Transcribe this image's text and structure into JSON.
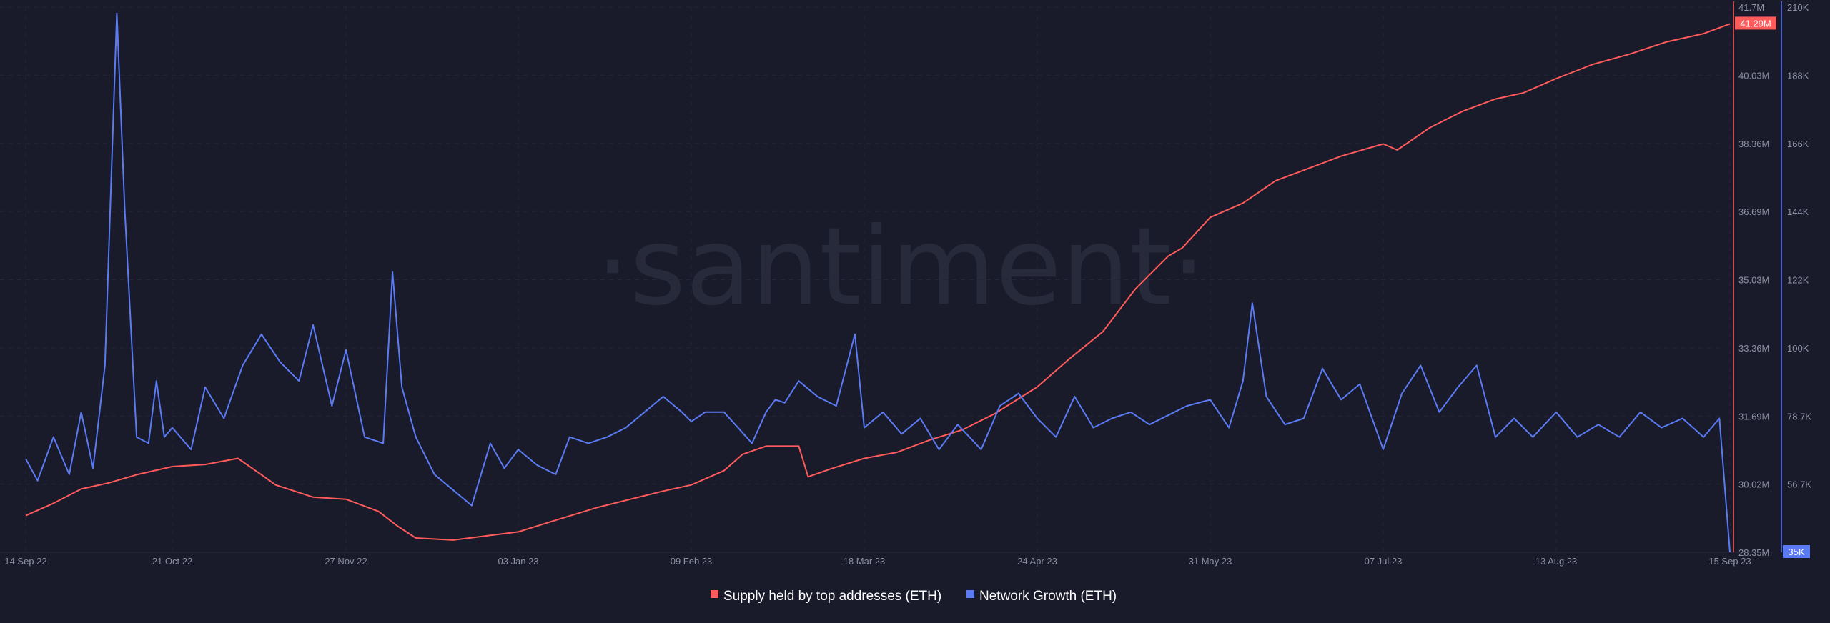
{
  "watermark": "·santiment·",
  "chart_data": {
    "type": "line",
    "x_tick_labels": [
      "14 Sep 22",
      "21 Oct 22",
      "27 Nov 22",
      "03 Jan 23",
      "09 Feb 23",
      "18 Mar 23",
      "24 Apr 23",
      "31 May 23",
      "07 Jul 23",
      "13 Aug 23",
      "15 Sep 23"
    ],
    "axes": {
      "supply": {
        "ticks": [
          "41.7M",
          "40.03M",
          "38.36M",
          "36.69M",
          "35.03M",
          "33.36M",
          "31.69M",
          "30.02M",
          "28.35M"
        ],
        "ylim": [
          28.35,
          41.7
        ],
        "unit": "M",
        "color": "#ff5b5b",
        "last_value_label": "41.29M"
      },
      "growth": {
        "ticks": [
          "210K",
          "188K",
          "166K",
          "144K",
          "122K",
          "100K",
          "78.7K",
          "56.7K",
          "35K"
        ],
        "ylim": [
          35,
          210
        ],
        "unit": "K",
        "color": "#5b7bf5",
        "last_value_label": "35K"
      }
    },
    "grid": true,
    "legend_position": "bottom-center",
    "series": [
      {
        "name": "Supply held by top addresses (ETH)",
        "axis": "supply",
        "x": [
          "14 Sep 22",
          "21 Sep 22",
          "28 Sep 22",
          "05 Oct 22",
          "12 Oct 22",
          "21 Oct 22",
          "28 Oct 22",
          "04 Nov 22",
          "09 Nov 22",
          "12 Nov 22",
          "20 Nov 22",
          "27 Nov 22",
          "04 Dec 22",
          "08 Dec 22",
          "12 Dec 22",
          "20 Dec 22",
          "27 Dec 22",
          "03 Jan 23",
          "10 Jan 23",
          "20 Jan 23",
          "27 Jan 23",
          "03 Feb 23",
          "09 Feb 23",
          "16 Feb 23",
          "20 Feb 23",
          "25 Feb 23",
          "04 Mar 23",
          "06 Mar 23",
          "11 Mar 23",
          "18 Mar 23",
          "25 Mar 23",
          "01 Apr 23",
          "08 Apr 23",
          "15 Apr 23",
          "24 Apr 23",
          "01 May 23",
          "08 May 23",
          "15 May 23",
          "22 May 23",
          "25 May 23",
          "31 May 23",
          "07 Jun 23",
          "14 Jun 23",
          "21 Jun 23",
          "28 Jun 23",
          "07 Jul 23",
          "10 Jul 23",
          "17 Jul 23",
          "24 Jul 23",
          "31 Jul 23",
          "06 Aug 23",
          "13 Aug 23",
          "20 Aug 23",
          "27 Aug 23",
          "03 Sep 23",
          "10 Sep 23",
          "15 Sep 23"
        ],
        "y": [
          29.25,
          29.55,
          29.9,
          30.05,
          30.25,
          30.45,
          30.5,
          30.65,
          30.25,
          30.0,
          29.7,
          29.65,
          29.35,
          29.0,
          28.7,
          28.65,
          28.75,
          28.85,
          29.1,
          29.45,
          29.65,
          29.85,
          30.0,
          30.35,
          30.75,
          30.95,
          30.95,
          30.2,
          30.4,
          30.65,
          30.8,
          31.1,
          31.35,
          31.75,
          32.4,
          33.1,
          33.75,
          34.8,
          35.6,
          35.8,
          36.55,
          36.9,
          37.45,
          37.75,
          38.05,
          38.35,
          38.2,
          38.75,
          39.15,
          39.45,
          39.6,
          39.95,
          40.3,
          40.55,
          40.85,
          41.05,
          41.29
        ]
      },
      {
        "name": "Network Growth (ETH)",
        "axis": "growth",
        "x": [
          "14 Sep 22",
          "17 Sep 22",
          "21 Sep 22",
          "25 Sep 22",
          "28 Sep 22",
          "01 Oct 22",
          "04 Oct 22",
          "07 Oct 22",
          "09 Oct 22",
          "12 Oct 22",
          "15 Oct 22",
          "17 Oct 22",
          "19 Oct 22",
          "21 Oct 22",
          "25 Oct 22",
          "28 Oct 22",
          "01 Nov 22",
          "05 Nov 22",
          "09 Nov 22",
          "13 Nov 22",
          "17 Nov 22",
          "20 Nov 22",
          "24 Nov 22",
          "27 Nov 22",
          "01 Dec 22",
          "05 Dec 22",
          "07 Dec 22",
          "09 Dec 22",
          "12 Dec 22",
          "16 Dec 22",
          "20 Dec 22",
          "24 Dec 22",
          "28 Dec 22",
          "31 Dec 22",
          "03 Jan 23",
          "07 Jan 23",
          "11 Jan 23",
          "14 Jan 23",
          "18 Jan 23",
          "22 Jan 23",
          "26 Jan 23",
          "30 Jan 23",
          "03 Feb 23",
          "07 Feb 23",
          "09 Feb 23",
          "12 Feb 23",
          "16 Feb 23",
          "19 Feb 23",
          "22 Feb 23",
          "25 Feb 23",
          "27 Feb 23",
          "01 Mar 23",
          "04 Mar 23",
          "08 Mar 23",
          "12 Mar 23",
          "16 Mar 23",
          "18 Mar 23",
          "22 Mar 23",
          "26 Mar 23",
          "30 Mar 23",
          "03 Apr 23",
          "07 Apr 23",
          "12 Apr 23",
          "16 Apr 23",
          "20 Apr 23",
          "24 Apr 23",
          "28 Apr 23",
          "02 May 23",
          "06 May 23",
          "10 May 23",
          "14 May 23",
          "18 May 23",
          "22 May 23",
          "26 May 23",
          "31 May 23",
          "04 Jun 23",
          "07 Jun 23",
          "09 Jun 23",
          "12 Jun 23",
          "16 Jun 23",
          "20 Jun 23",
          "24 Jun 23",
          "28 Jun 23",
          "02 Jul 23",
          "07 Jul 23",
          "11 Jul 23",
          "15 Jul 23",
          "19 Jul 23",
          "23 Jul 23",
          "27 Jul 23",
          "31 Jul 23",
          "04 Aug 23",
          "08 Aug 23",
          "13 Aug 23",
          "17 Aug 23",
          "21 Aug 23",
          "25 Aug 23",
          "29 Aug 23",
          "02 Sep 23",
          "06 Sep 23",
          "10 Sep 23",
          "13 Sep 23",
          "15 Sep 23"
        ],
        "y": [
          65,
          58,
          72,
          60,
          80,
          62,
          95,
          208,
          145,
          72,
          70,
          90,
          72,
          75,
          68,
          88,
          78,
          95,
          105,
          96,
          90,
          108,
          82,
          100,
          72,
          70,
          125,
          88,
          72,
          60,
          55,
          50,
          70,
          62,
          68,
          63,
          60,
          72,
          70,
          72,
          75,
          80,
          85,
          80,
          77,
          80,
          80,
          75,
          70,
          80,
          84,
          83,
          90,
          85,
          82,
          105,
          75,
          80,
          73,
          78,
          68,
          76,
          68,
          82,
          86,
          78,
          72,
          85,
          75,
          78,
          80,
          76,
          79,
          82,
          84,
          75,
          90,
          115,
          85,
          76,
          78,
          94,
          84,
          89,
          68,
          86,
          95,
          80,
          88,
          95,
          72,
          78,
          72,
          80,
          72,
          76,
          72,
          80,
          75,
          78,
          72,
          78,
          35
        ]
      }
    ]
  }
}
